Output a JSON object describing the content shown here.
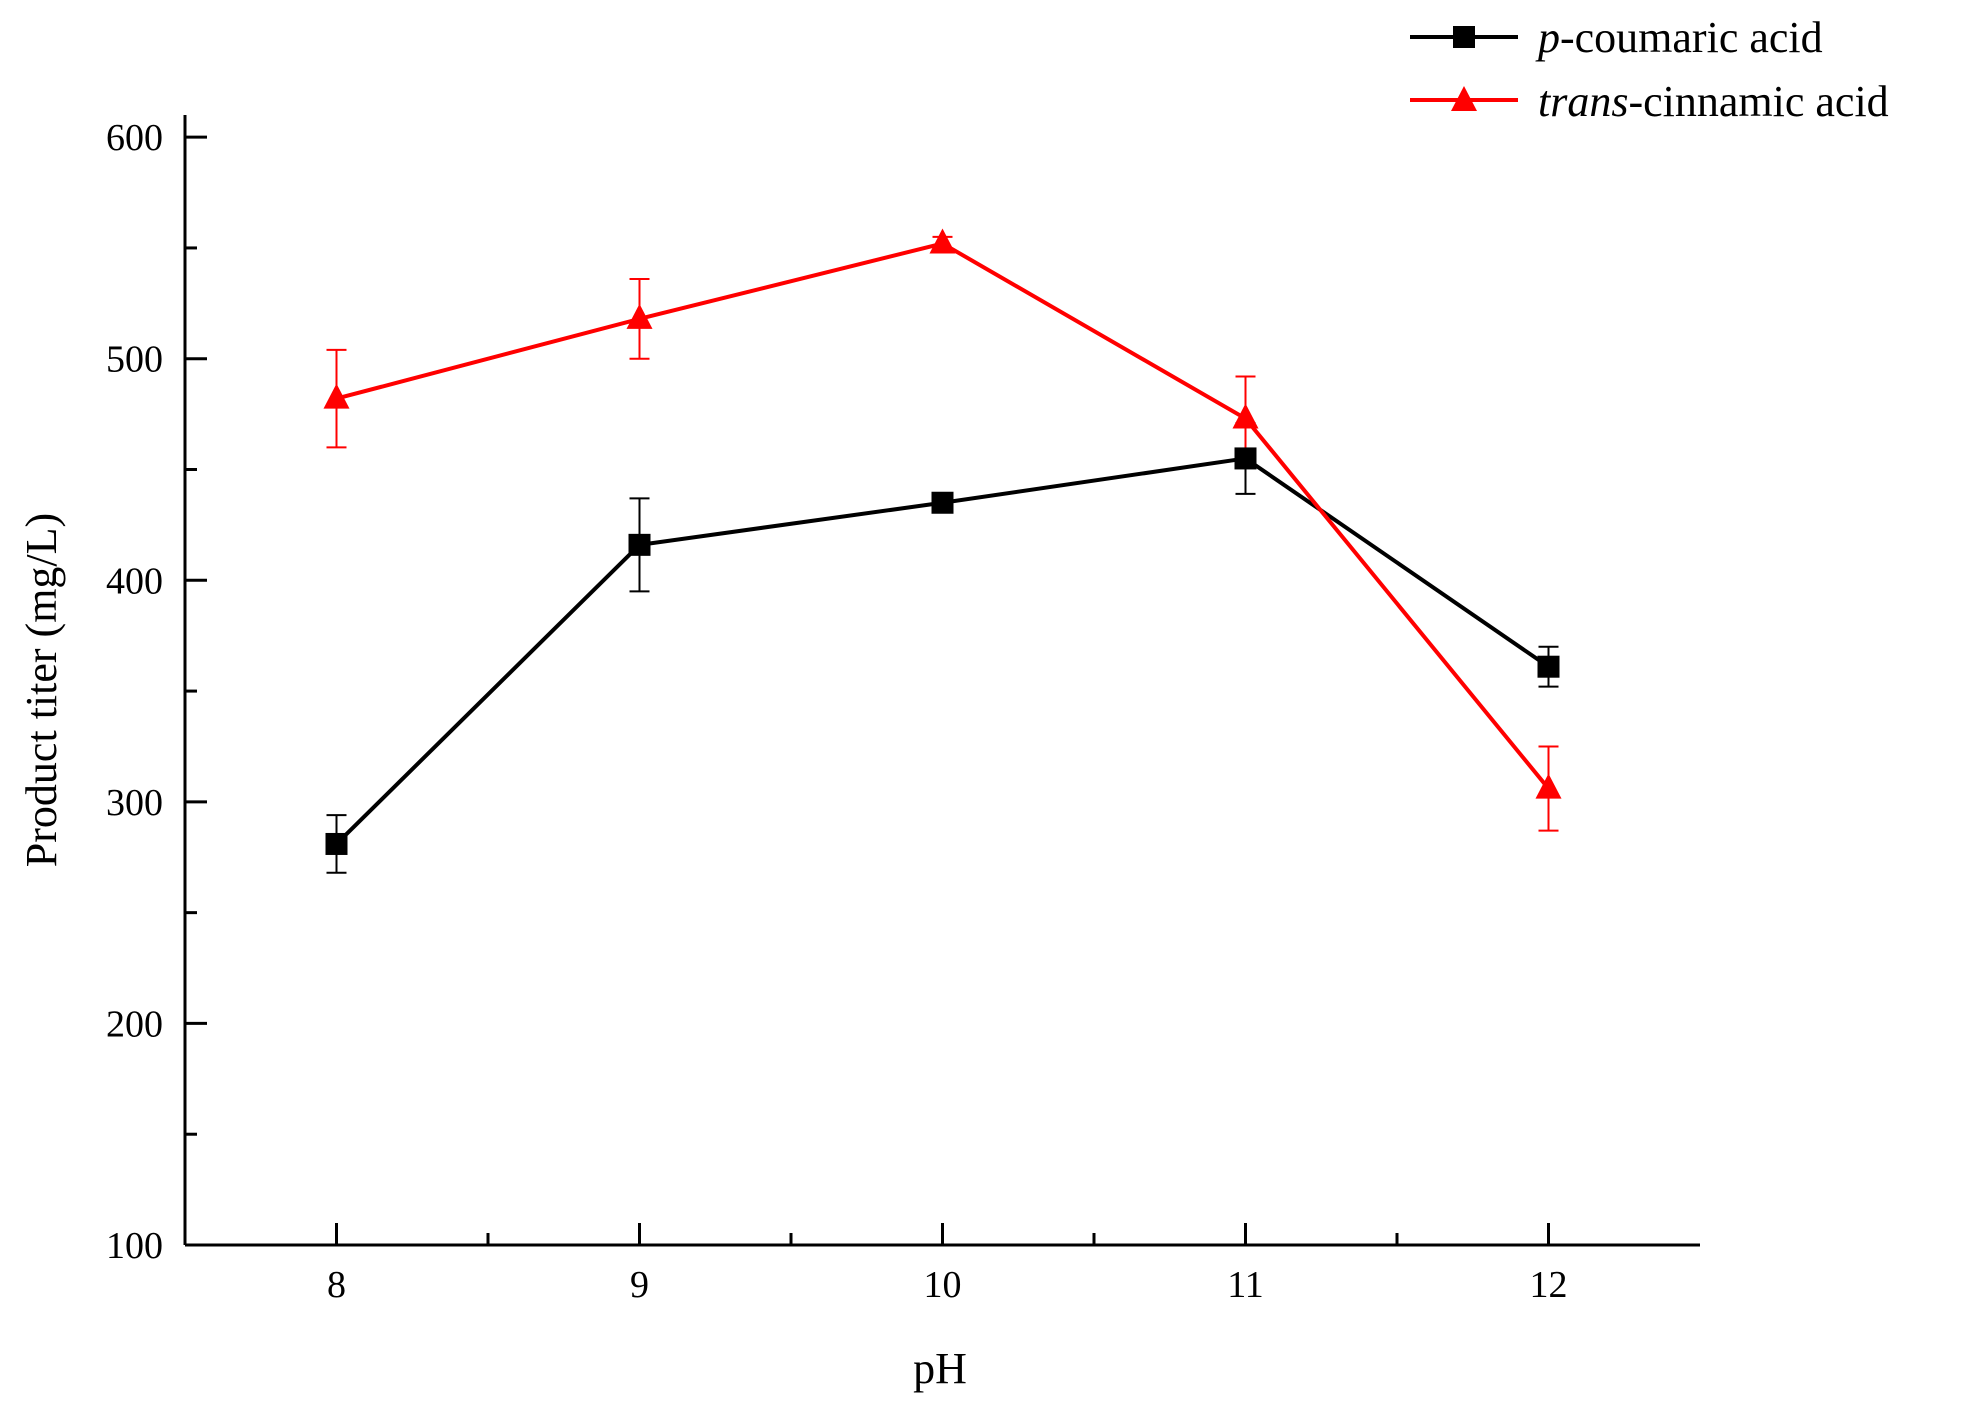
{
  "chart_data": {
    "type": "line",
    "xlabel": "pH",
    "ylabel": "Product titer (mg/L)",
    "x": [
      8,
      9,
      10,
      11,
      12
    ],
    "xlim": [
      7.5,
      12.5
    ],
    "ylim": [
      100,
      610
    ],
    "xticks": [
      8,
      9,
      10,
      11,
      12
    ],
    "yticks": [
      100,
      200,
      300,
      400,
      500,
      600
    ],
    "grid": false,
    "legend_position": "top-right",
    "series": [
      {
        "name_prefix": "p",
        "name_suffix": "-coumaric acid",
        "color": "#000000",
        "marker": "square",
        "values": [
          281,
          416,
          435,
          455,
          361
        ],
        "errors": [
          13,
          21,
          4,
          16,
          9
        ]
      },
      {
        "name_prefix": "trans",
        "name_suffix": "-cinnamic acid",
        "color": "#ff0000",
        "marker": "triangle",
        "values": [
          482,
          518,
          552,
          473,
          306
        ],
        "errors": [
          22,
          18,
          3,
          19,
          19
        ]
      }
    ]
  }
}
